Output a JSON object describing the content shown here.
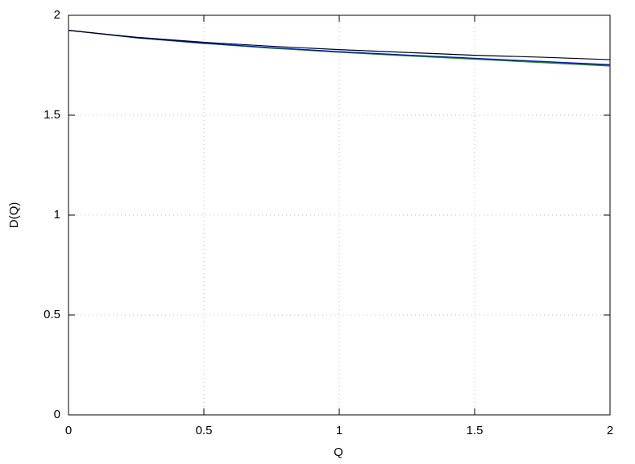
{
  "chart_data": {
    "type": "line",
    "x_label": "Q",
    "y_label": "D(Q)",
    "x": [
      0,
      0.25,
      0.5,
      0.75,
      1,
      1.25,
      1.5,
      1.75,
      2
    ],
    "series": [
      {
        "color": "#9400d3",
        "values": [
          1.925,
          1.888,
          1.86,
          1.837,
          1.817,
          1.8,
          1.783,
          1.767,
          1.75
        ]
      },
      {
        "color": "#009e00",
        "values": [
          1.925,
          1.887,
          1.859,
          1.835,
          1.815,
          1.797,
          1.78,
          1.763,
          1.746
        ]
      },
      {
        "color": "#0000ff",
        "values": [
          1.925,
          1.888,
          1.861,
          1.838,
          1.818,
          1.801,
          1.785,
          1.769,
          1.753
        ]
      },
      {
        "color": "#000000",
        "values": [
          1.925,
          1.89,
          1.865,
          1.845,
          1.828,
          1.814,
          1.8,
          1.79,
          1.778
        ]
      }
    ],
    "xlim": [
      0,
      2
    ],
    "ylim": [
      0,
      2
    ],
    "xticks": [
      0,
      0.5,
      1,
      1.5,
      2
    ],
    "yticks": [
      0,
      0.5,
      1,
      1.5,
      2
    ],
    "grid": true
  }
}
